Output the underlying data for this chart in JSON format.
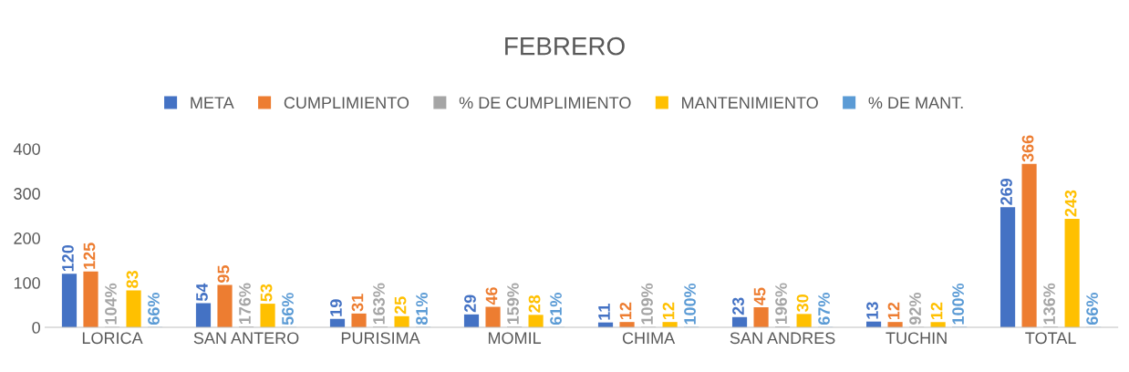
{
  "chart_data": {
    "type": "bar",
    "title": "FEBRERO",
    "categories": [
      "LORICA",
      "SAN ANTERO",
      "PURISIMA",
      "MOMIL",
      "CHIMA",
      "SAN ANDRES",
      "TUCHIN",
      "TOTAL"
    ],
    "series": [
      {
        "name": "META",
        "color": "#4472c4",
        "values": [
          120,
          54,
          19,
          29,
          11,
          23,
          13,
          269
        ],
        "value_labels": [
          "120",
          "54",
          "19",
          "29",
          "11",
          "23",
          "13",
          "269"
        ]
      },
      {
        "name": "CUMPLIMIENTO",
        "color": "#ed7d31",
        "values": [
          125,
          95,
          31,
          46,
          12,
          45,
          12,
          366
        ],
        "value_labels": [
          "125",
          "95",
          "31",
          "46",
          "12",
          "45",
          "12",
          "366"
        ]
      },
      {
        "name": "% DE CUMPLIMIENTO",
        "color": "#a5a5a5",
        "values": [
          1.04,
          1.76,
          1.63,
          1.59,
          1.09,
          1.96,
          0.92,
          1.36
        ],
        "value_labels": [
          "104%",
          "176%",
          "163%",
          "159%",
          "109%",
          "196%",
          "92%",
          "136%"
        ]
      },
      {
        "name": "MANTENIMIENTO",
        "color": "#ffc000",
        "values": [
          83,
          53,
          25,
          28,
          12,
          30,
          12,
          243
        ],
        "value_labels": [
          "83",
          "53",
          "25",
          "28",
          "12",
          "30",
          "12",
          "243"
        ]
      },
      {
        "name": "% DE MANT.",
        "color": "#5b9bd5",
        "values": [
          0.66,
          0.56,
          0.81,
          0.61,
          1.0,
          0.67,
          1.0,
          0.66
        ],
        "value_labels": [
          "66%",
          "56%",
          "81%",
          "61%",
          "100%",
          "67%",
          "100%",
          "66%"
        ]
      }
    ],
    "ylim": [
      0,
      400
    ],
    "yticks": [
      0,
      100,
      200,
      300,
      400
    ],
    "grid": false,
    "legend": "top"
  }
}
